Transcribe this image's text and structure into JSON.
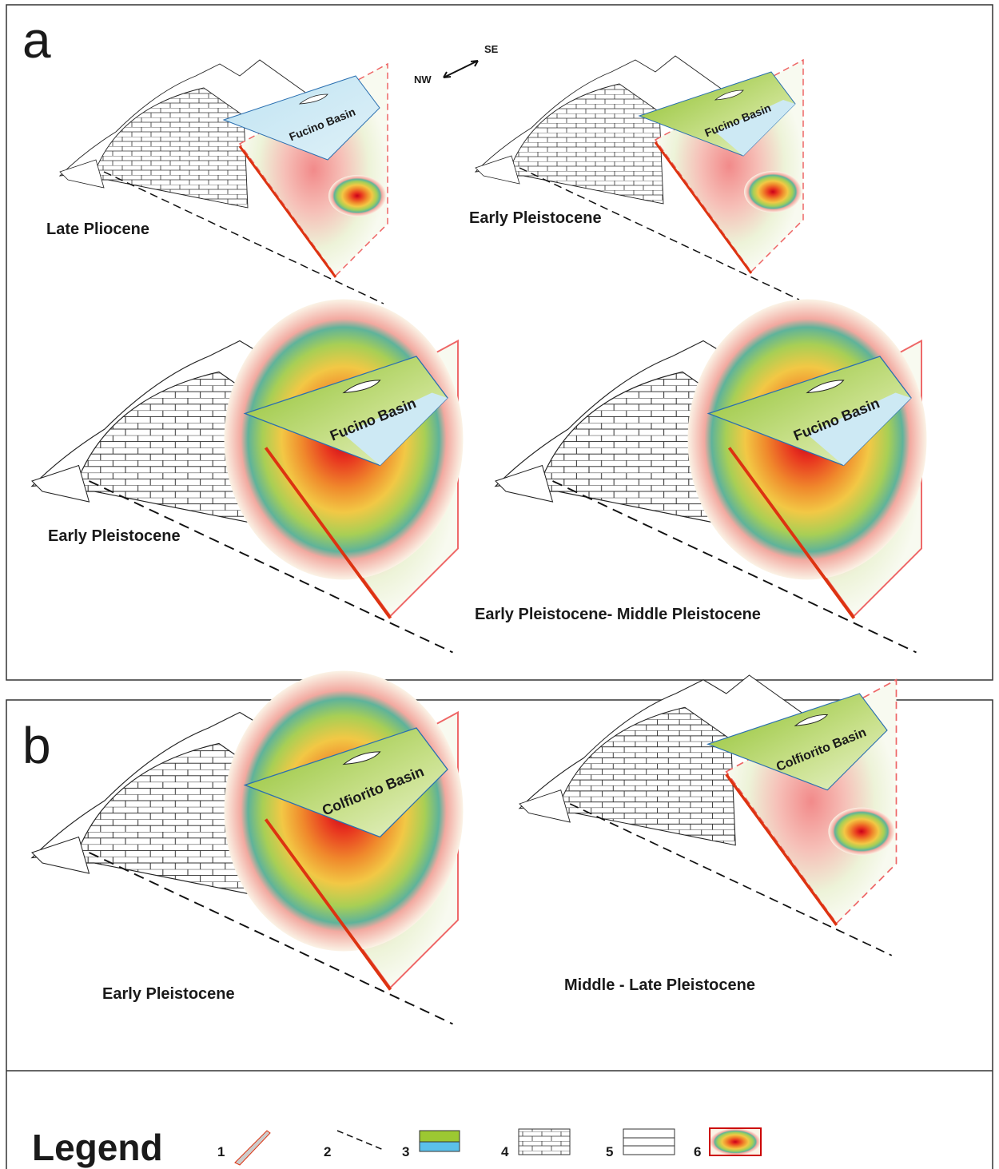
{
  "panel_a": {
    "label": "a",
    "compass": {
      "nw": "NW",
      "se": "SE"
    },
    "blocks": [
      {
        "stage": "Late Pliocene",
        "basin": "Fucino Basin"
      },
      {
        "stage": "Early Pleistocene",
        "basin": "Fucino Basin"
      },
      {
        "stage": "Early Pleistocene",
        "basin": "Fucino Basin"
      },
      {
        "stage": "Early Pleistocene- Middle Pleistocene",
        "basin": "Fucino Basin"
      }
    ]
  },
  "panel_b": {
    "label": "b",
    "blocks": [
      {
        "stage": "Early Pleistocene",
        "basin": "Colfiorito Basin"
      },
      {
        "stage": "Middle - Late Pleistocene",
        "basin": "Colfiorito Basin"
      }
    ]
  },
  "legend": {
    "title": "Legend",
    "items": [
      "1",
      "2",
      "3",
      "4",
      "5",
      "6"
    ]
  }
}
